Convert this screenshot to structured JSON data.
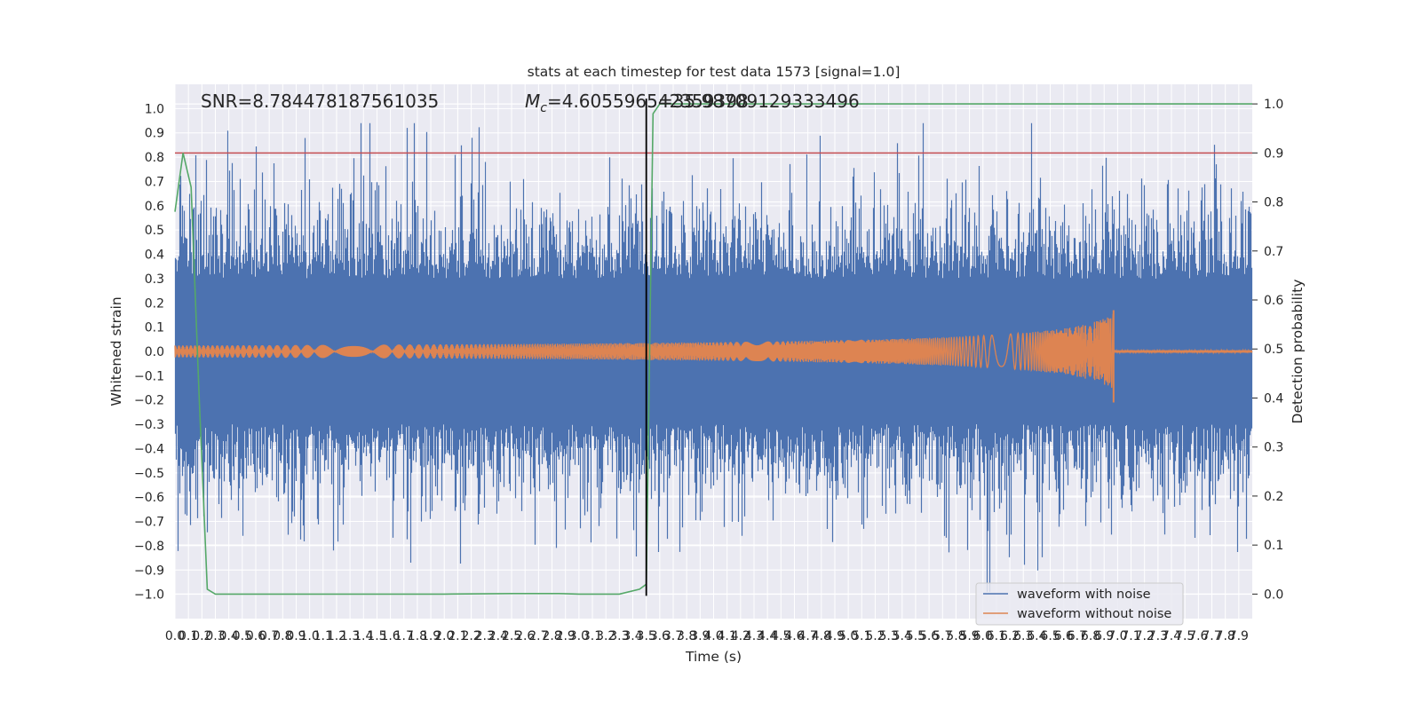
{
  "chart_data": {
    "type": "line",
    "title": "stats at each timestep for test data 1573 [signal=1.0]",
    "xlabel": "Time (s)",
    "ylabel": "Whitened strain",
    "y2label": "Detection probability",
    "xlim": [
      0.0,
      8.0
    ],
    "ylim": [
      -1.1,
      1.1
    ],
    "y2lim": [
      -0.05,
      1.04
    ],
    "x_ticks": [
      "0.0",
      "0.1",
      "0.2",
      "0.3",
      "0.4",
      "0.5",
      "0.6",
      "0.7",
      "0.8",
      "0.9",
      "1.0",
      "1.1",
      "1.2",
      "1.3",
      "1.4",
      "1.5",
      "1.6",
      "1.7",
      "1.8",
      "1.9",
      "2.0",
      "2.1",
      "2.2",
      "2.3",
      "2.4",
      "2.5",
      "2.6",
      "2.7",
      "2.8",
      "2.9",
      "3.0",
      "3.1",
      "3.2",
      "3.3",
      "3.4",
      "3.5",
      "3.6",
      "3.7",
      "3.8",
      "3.9",
      "4.0",
      "4.1",
      "4.2",
      "4.3",
      "4.4",
      "4.5",
      "4.6",
      "4.7",
      "4.8",
      "4.9",
      "5.0",
      "5.1",
      "5.2",
      "5.3",
      "5.4",
      "5.5",
      "5.6",
      "5.7",
      "5.8",
      "5.9",
      "6.0",
      "6.1",
      "6.2",
      "6.3",
      "6.4",
      "6.5",
      "6.6",
      "6.7",
      "6.8",
      "6.9",
      "7.0",
      "7.1",
      "7.2",
      "7.3",
      "7.4",
      "7.5",
      "7.6",
      "7.7",
      "7.8",
      "7.9"
    ],
    "y_ticks": [
      "1.0",
      "0.9",
      "0.8",
      "0.7",
      "0.6",
      "0.5",
      "0.4",
      "0.3",
      "0.2",
      "0.1",
      "0.0",
      "−0.1",
      "−0.2",
      "−0.3",
      "−0.4",
      "−0.5",
      "−0.6",
      "−0.7",
      "−0.8",
      "−0.9",
      "−1.0"
    ],
    "y2_ticks": [
      "1.0",
      "0.9",
      "0.8",
      "0.7",
      "0.6",
      "0.5",
      "0.4",
      "0.3",
      "0.2",
      "0.1",
      "0.0"
    ],
    "annotations": {
      "snr": "SNR=8.784478187561035",
      "mc_prefix": "M",
      "mc_sub": "c",
      "mc_value": "=4.605596542359398",
      "mc_overlap": "=35.98709129333496"
    },
    "threshold_prob": 0.9,
    "marker_time": 3.5,
    "series": [
      {
        "name": "waveform with noise",
        "color": "#4c72b0",
        "kind": "noise",
        "samples_per_second": 512,
        "typical_amplitude": 0.35,
        "peak_amplitude": 1.0
      },
      {
        "name": "waveform without noise",
        "color": "#dd8452",
        "kind": "chirp",
        "start_amplitude": 0.025,
        "merger_time": 6.97,
        "merger_amplitude": 0.17,
        "ringdown_amplitude": 0.005
      },
      {
        "name": "detection probability",
        "color": "#55a868",
        "axis": "y2",
        "x": [
          0.0,
          0.06,
          0.12,
          0.18,
          0.24,
          0.3,
          0.6,
          1.0,
          1.5,
          2.0,
          2.5,
          2.85,
          3.0,
          3.3,
          3.45,
          3.5,
          3.55,
          3.6,
          3.64,
          3.7,
          4.0,
          5.0,
          6.0,
          7.0,
          8.0
        ],
        "y": [
          0.78,
          0.9,
          0.83,
          0.4,
          0.01,
          0.0,
          0.0,
          0.0,
          0.0,
          0.0,
          0.001,
          0.001,
          0.0,
          0.0,
          0.01,
          0.02,
          0.98,
          1.0,
          1.0,
          1.0,
          1.0,
          1.0,
          1.0,
          1.0,
          1.0
        ]
      },
      {
        "name": "threshold",
        "color": "#c44e52",
        "axis": "y2"
      }
    ],
    "legend": {
      "placement": "lower-right",
      "entries": [
        {
          "label": "waveform with noise",
          "color": "#4c72b0"
        },
        {
          "label": "waveform without noise",
          "color": "#dd8452"
        }
      ]
    },
    "style": {
      "plot_background": "#eaeaf2",
      "grid_color": "#ffffff",
      "marker_color": "#000000"
    }
  }
}
